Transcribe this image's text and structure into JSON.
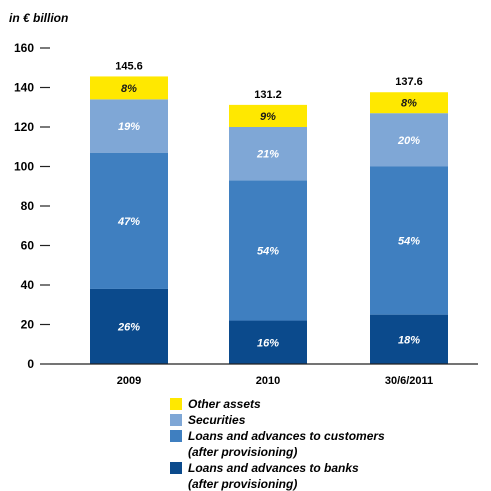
{
  "chart_data": {
    "type": "bar",
    "stacked": true,
    "unit_label": "in € billion",
    "categories": [
      "2009",
      "2010",
      "30/6/2011"
    ],
    "totals": [
      "145.6",
      "131.2",
      "137.6"
    ],
    "ylim": [
      0,
      160
    ],
    "yticks": [
      0,
      20,
      40,
      60,
      80,
      100,
      120,
      140,
      160
    ],
    "grid": false,
    "legend_position": "bottom",
    "series": [
      {
        "name": "Loans and advances to banks",
        "name_line2": "(after provisioning)",
        "color": "#0b4a8c",
        "values": [
          38,
          22,
          25
        ],
        "labels": [
          "26%",
          "16%",
          "18%"
        ]
      },
      {
        "name": "Loans and advances to customers",
        "name_line2": "(after provisioning)",
        "color": "#3f7fc0",
        "values": [
          69,
          71,
          75
        ],
        "labels": [
          "47%",
          "54%",
          "54%"
        ]
      },
      {
        "name": "Securities",
        "name_line2": "",
        "color": "#7fa7d6",
        "values": [
          27,
          27,
          27
        ],
        "labels": [
          "19%",
          "21%",
          "20%"
        ]
      },
      {
        "name": "Other assets",
        "name_line2": "",
        "color": "#ffe800",
        "values": [
          11.6,
          11.2,
          10.6
        ],
        "labels": [
          "8%",
          "9%",
          "8%"
        ]
      }
    ]
  }
}
